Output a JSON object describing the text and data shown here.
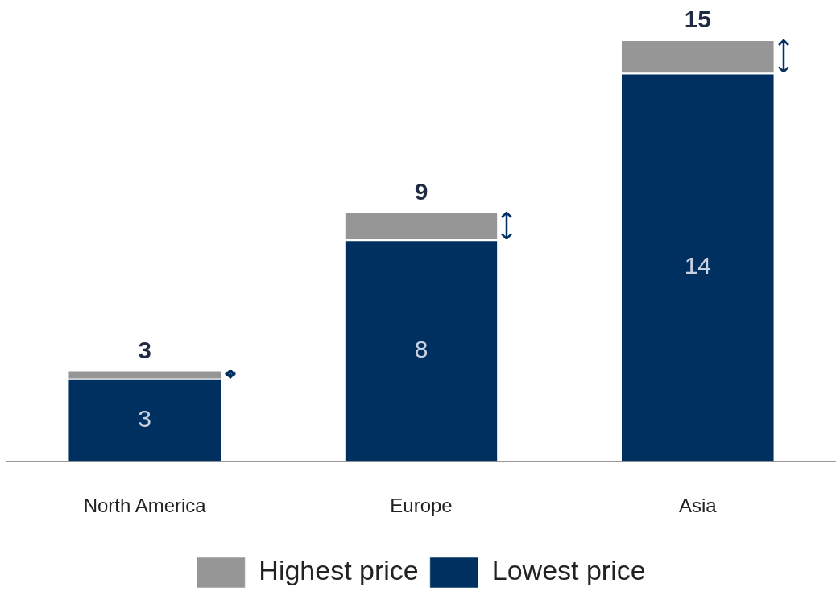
{
  "chart_data": {
    "type": "bar",
    "stacked": true,
    "tick_labels": "x",
    "legend": "bottom",
    "categories": [
      "North America",
      "Europe",
      "Asia"
    ],
    "series": [
      {
        "name": "Lowest price",
        "color": "#00305f",
        "values": [
          3,
          8,
          14
        ],
        "value_labels": [
          "3",
          "8",
          "14"
        ]
      },
      {
        "name": "Highest price",
        "color": "#969696",
        "values": [
          0.3,
          1,
          1.2
        ]
      }
    ],
    "totals": [
      "3",
      "9",
      "15"
    ]
  }
}
